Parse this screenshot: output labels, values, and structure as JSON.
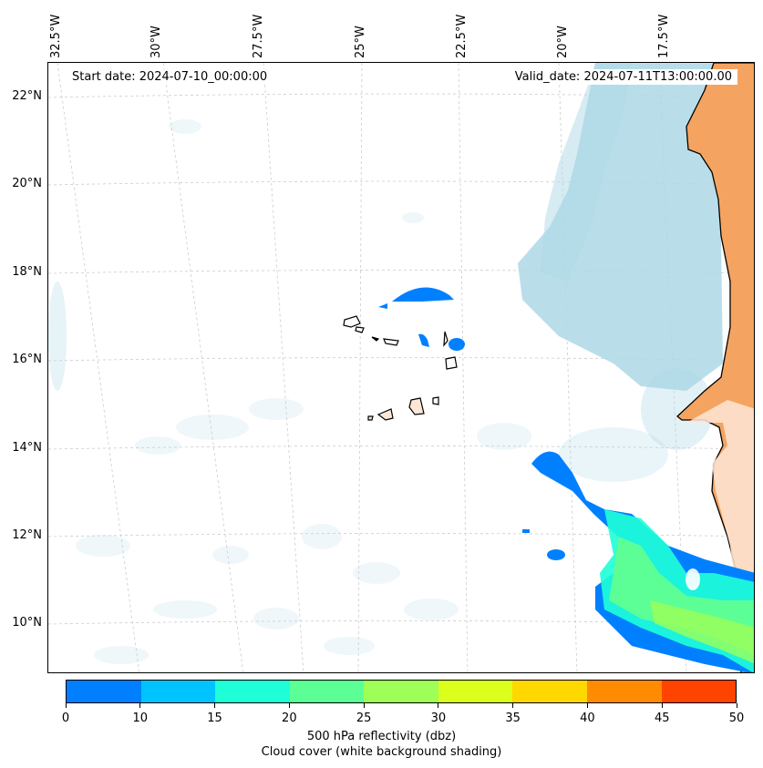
{
  "map": {
    "start_date": "Start date: 2024-07-10_00:00:00",
    "valid_date": "Valid_date: 2024-07-11T13:00:00.00",
    "longitude_labels": [
      "32.5°W",
      "30°W",
      "27.5°W",
      "25°W",
      "22.5°W",
      "20°W",
      "17.5°W"
    ],
    "latitude_labels": [
      "22°N",
      "20°N",
      "18°N",
      "16°N",
      "14°N",
      "12°N",
      "10°N"
    ],
    "land_color": "#f4a460",
    "cloud_color": "#add8e6",
    "gridlines": true
  },
  "colorbar": {
    "title_line1": "500 hPa reflectivity (dbz)",
    "title_line2": "Cloud cover (white background shading)",
    "tick_labels": [
      "0",
      "10",
      "15",
      "20",
      "25",
      "30",
      "35",
      "40",
      "45",
      "50"
    ],
    "colors": [
      "#0080ff",
      "#00c4ff",
      "#1effd8",
      "#5cff96",
      "#9eff58",
      "#dcff1c",
      "#ffd800",
      "#ff8c00",
      "#ff4400"
    ]
  }
}
